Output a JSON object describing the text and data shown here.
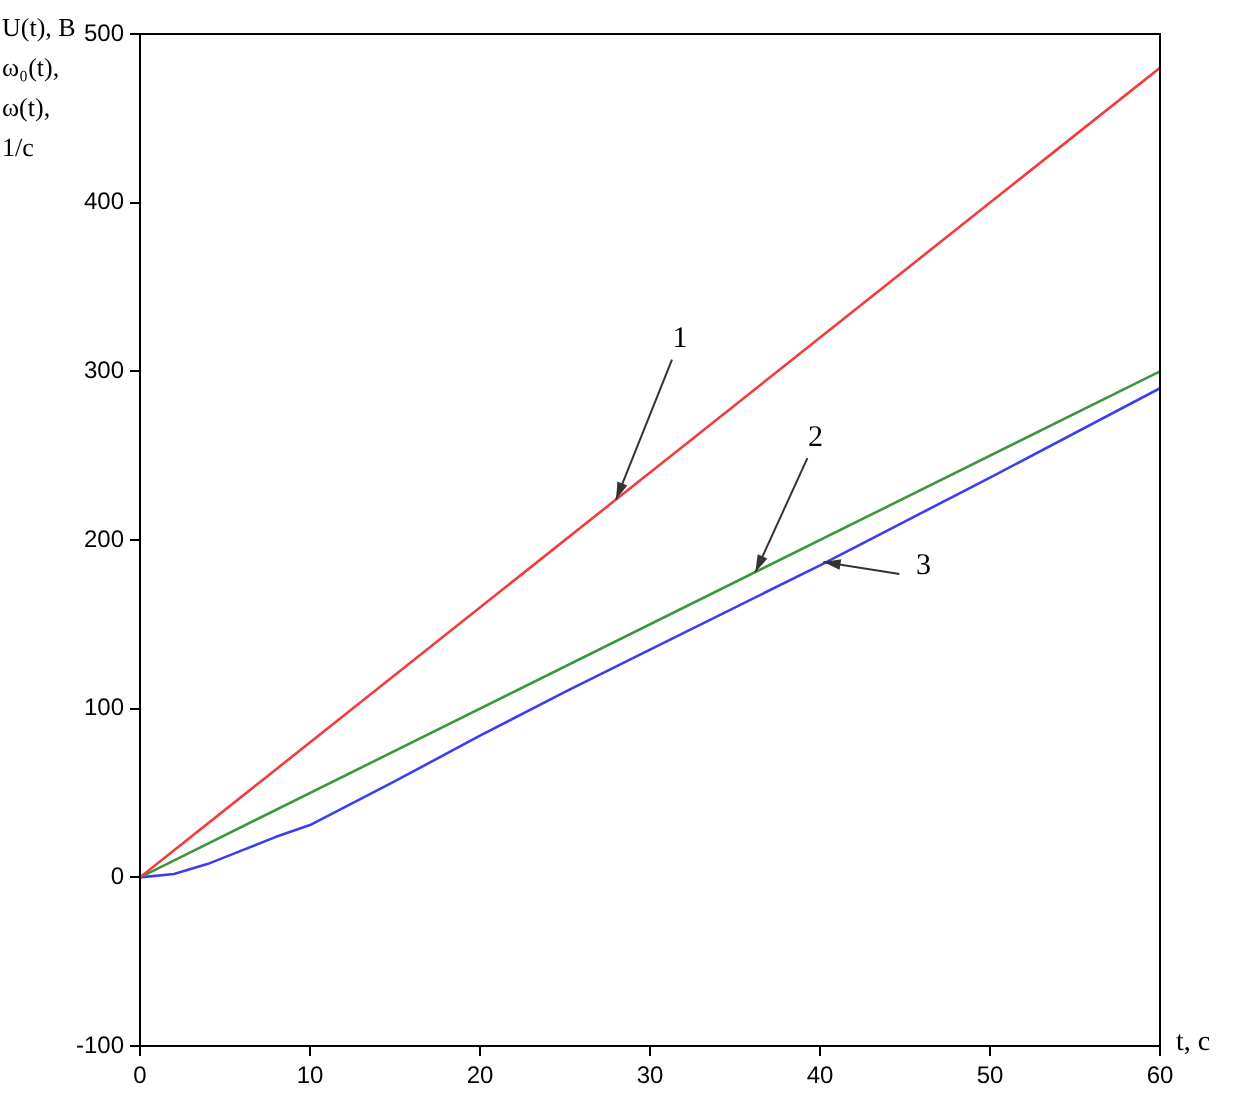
{
  "chart_data": {
    "type": "line",
    "xlabel": "t, c",
    "ylabel": "U(t), В\nω₀(t),\nω(t),\n1/c",
    "xlim": [
      0,
      60
    ],
    "xticks": [
      0,
      10,
      20,
      30,
      40,
      50,
      60
    ],
    "ylim": [
      -100,
      500
    ],
    "yticks": [
      -100,
      0,
      100,
      200,
      300,
      400,
      500
    ],
    "grid": false,
    "legend": false,
    "marker": "none",
    "line_style": "solid",
    "series": [
      {
        "color": "#f03c3c",
        "x": [
          0,
          60
        ],
        "values": [
          0,
          480
        ]
      },
      {
        "color": "#3c963c",
        "x": [
          0,
          60
        ],
        "values": [
          0,
          300
        ]
      },
      {
        "color": "#3c3cf0",
        "x": [
          0,
          2,
          4,
          6,
          8,
          10,
          15,
          20,
          25,
          30,
          40,
          50,
          60
        ],
        "values": [
          0,
          2,
          8,
          16,
          24,
          31,
          57,
          84,
          110,
          135,
          185,
          237,
          290
        ]
      }
    ],
    "annotations": [
      {
        "text": "1",
        "x": 28,
        "y": 224
      },
      {
        "text": "2",
        "x": 36.2,
        "y": 181
      },
      {
        "text": "3",
        "x": 40.2,
        "y": 187
      }
    ]
  }
}
